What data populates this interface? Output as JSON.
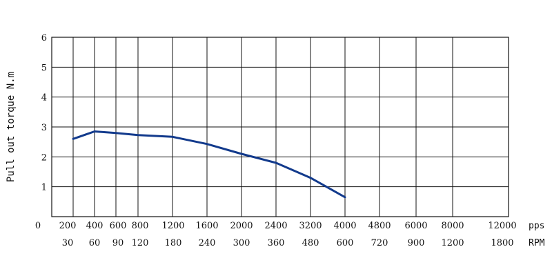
{
  "chart_data": {
    "type": "line",
    "ylabel": "Pull out torque N.m",
    "xlabel_pps": "pps",
    "xlabel_rpm": "RPM",
    "ylim": [
      0,
      6
    ],
    "y_ticks": [
      "1",
      "2",
      "3",
      "4",
      "5",
      "6"
    ],
    "y_zero_label": "0",
    "pps_ticks": [
      "200",
      "400",
      "600",
      "800",
      "1200",
      "1600",
      "2000",
      "2400",
      "3200",
      "4000",
      "4800",
      "6000",
      "8000",
      "12000"
    ],
    "rpm_ticks": [
      "30",
      "60",
      "90",
      "120",
      "180",
      "240",
      "300",
      "360",
      "480",
      "600",
      "720",
      "900",
      "1200",
      "1800"
    ],
    "grid": true,
    "line_color": "#123a8c",
    "series": [
      {
        "x_pps": [
          200,
          400,
          600,
          800,
          1200,
          1600,
          2000,
          2400,
          3200,
          4000
        ],
        "values": [
          2.6,
          2.85,
          2.8,
          2.73,
          2.67,
          2.43,
          2.1,
          1.8,
          1.3,
          0.65
        ]
      }
    ]
  }
}
